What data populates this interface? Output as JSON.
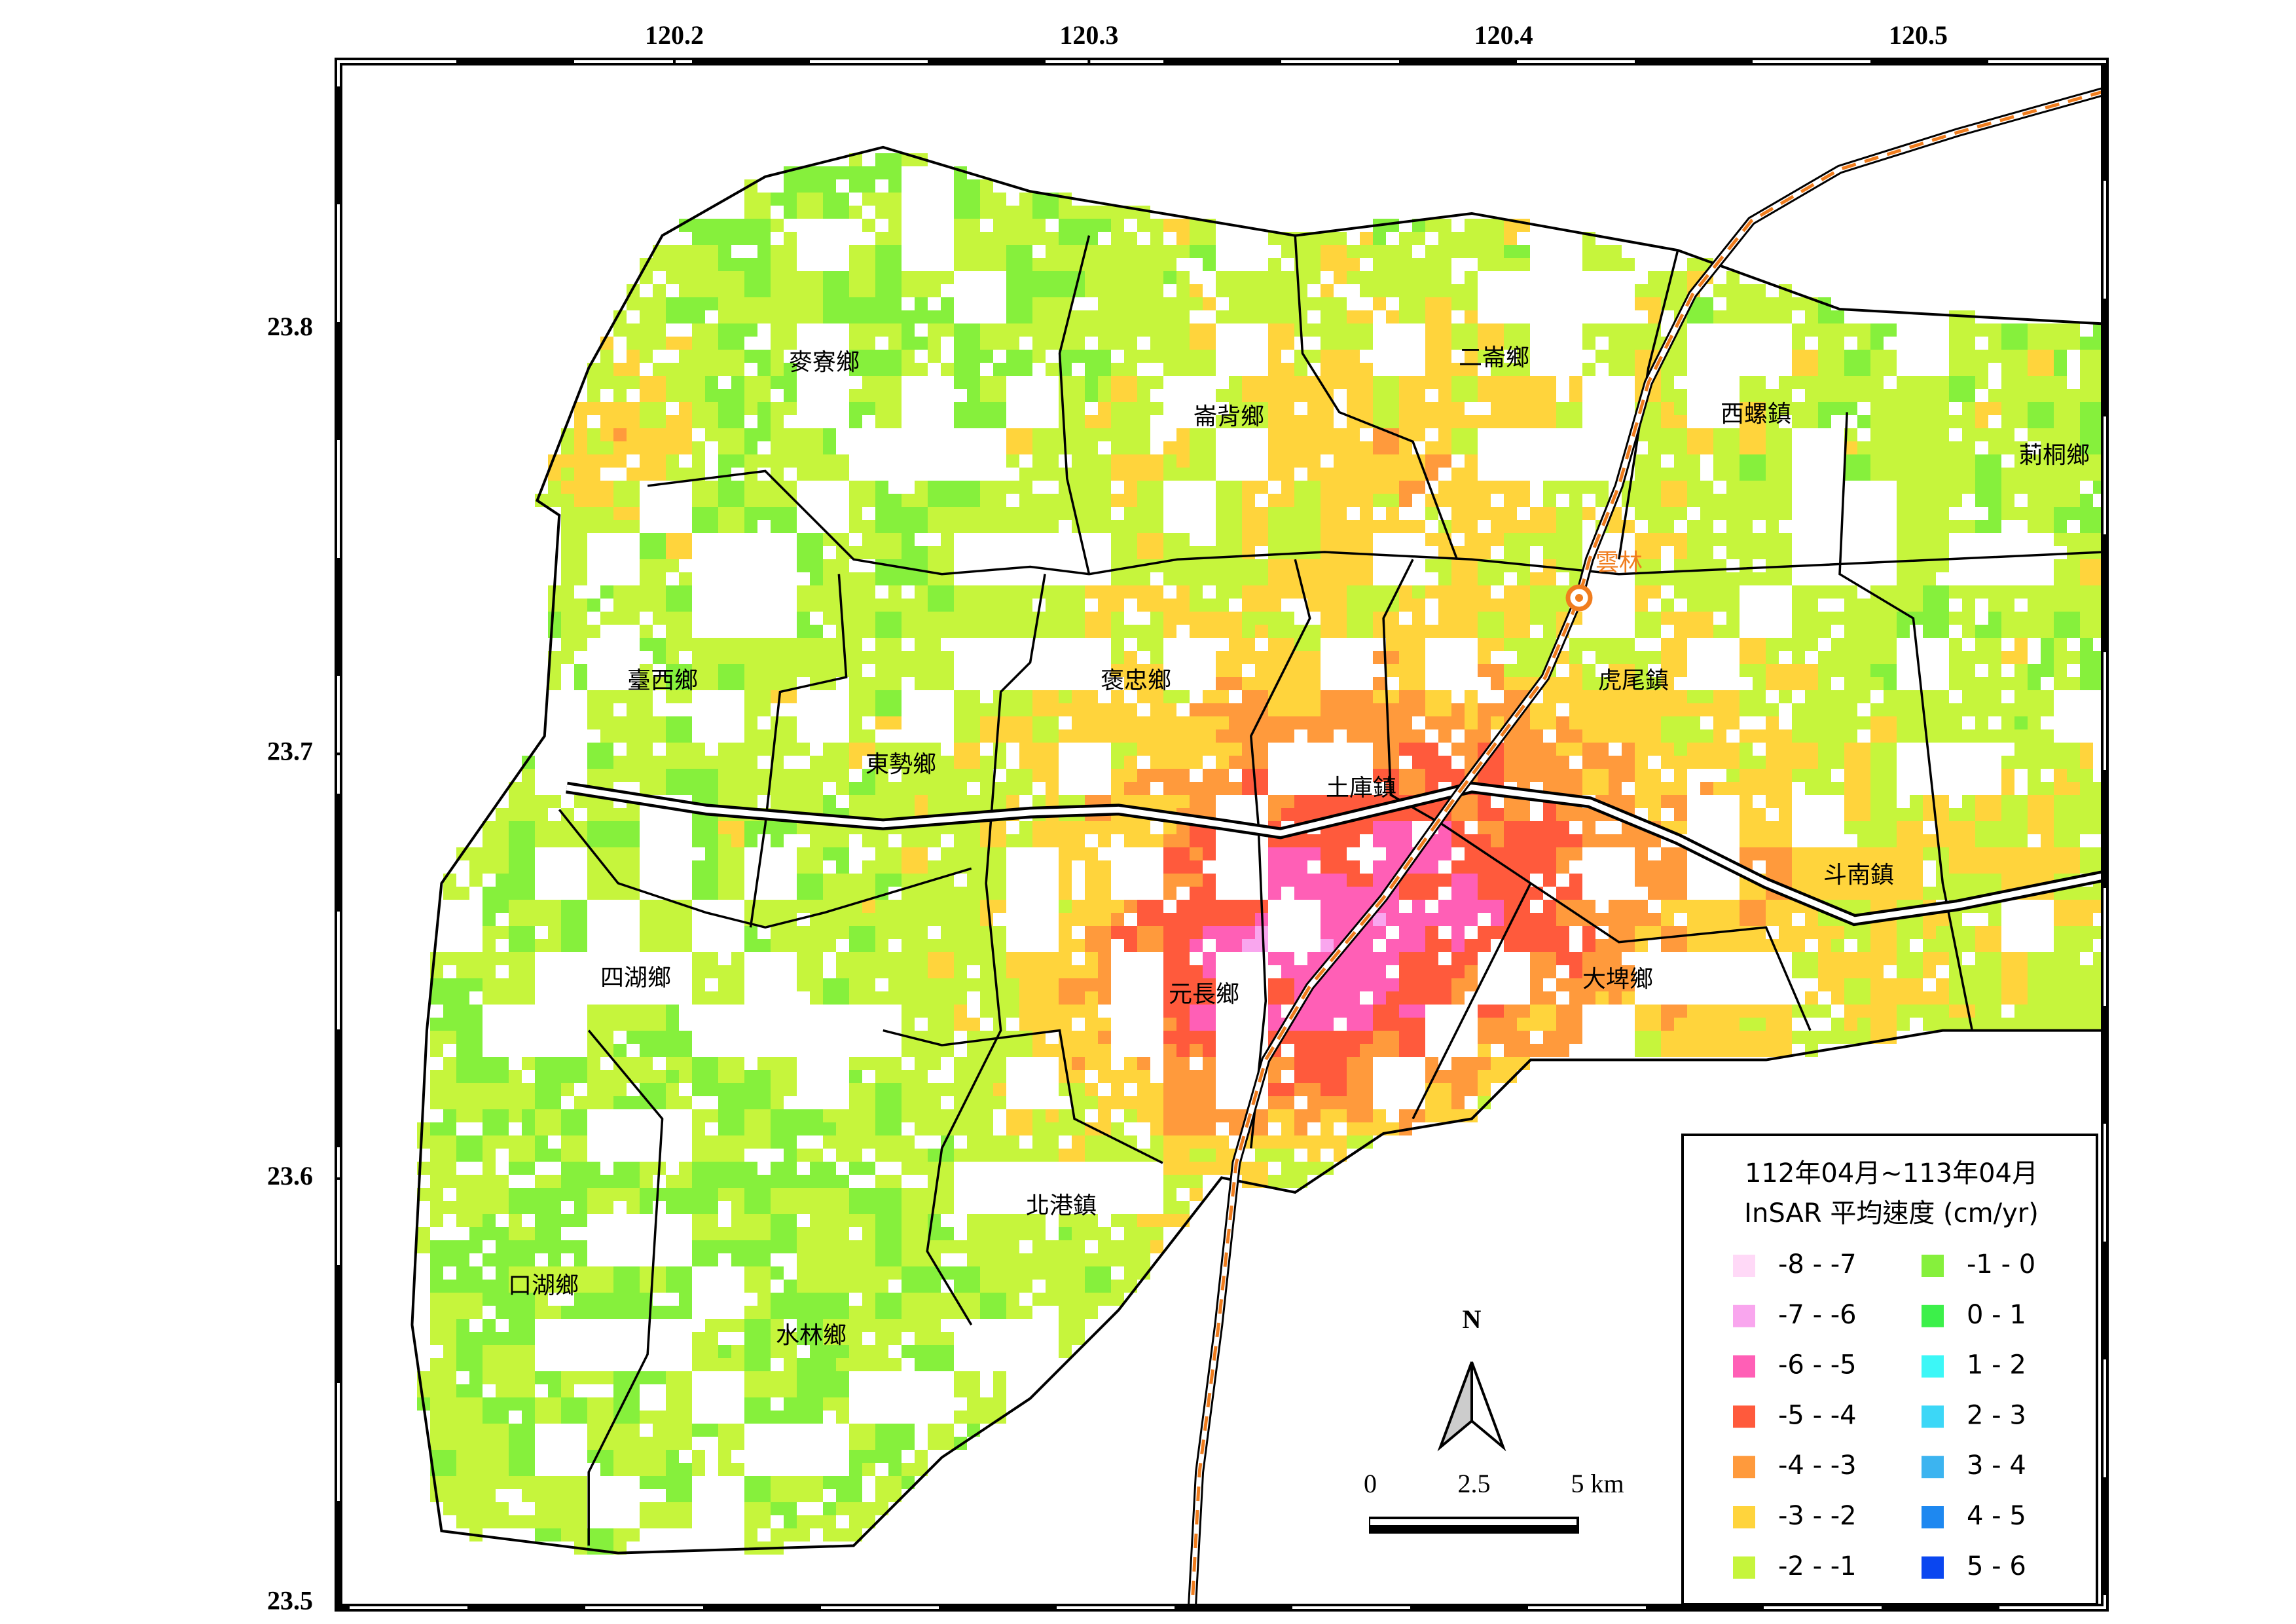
{
  "map": {
    "lon_ticks": [
      120.2,
      120.3,
      120.4,
      120.5
    ],
    "lat_ticks": [
      23.8,
      23.7,
      23.6,
      23.5
    ],
    "xlim": [
      120.119,
      120.545
    ],
    "ylim": [
      23.499,
      23.863
    ],
    "townships": [
      "麥寮鄉",
      "崙背鄉",
      "二崙鄉",
      "西螺鎮",
      "莿桐鄉",
      "臺西鄉",
      "褒忠鄉",
      "虎尾鎮",
      "東勢鄉",
      "土庫鎮",
      "斗南鎮",
      "四湖鄉",
      "元長鄉",
      "大埤鄉",
      "北港鎮",
      "口湖鄉",
      "水林鄉"
    ],
    "station": "雲林",
    "legend": {
      "title": [
        "112年04月~113年04月",
        "InSAR 平均速度 (cm/yr)"
      ],
      "items": [
        {
          "label": "-8 - -7",
          "color": "#ffd9f7"
        },
        {
          "label": "-7 - -6",
          "color": "#f9a6ee"
        },
        {
          "label": "-6 - -5",
          "color": "#ff5fb6"
        },
        {
          "label": "-5 - -4",
          "color": "#ff5a3c"
        },
        {
          "label": "-4 - -3",
          "color": "#ff9a3c"
        },
        {
          "label": "-3 - -2",
          "color": "#ffd43c"
        },
        {
          "label": "-2 - -1",
          "color": "#c6f53c"
        },
        {
          "label": "-1 - 0",
          "color": "#86f03c"
        },
        {
          "label": "0 - 1",
          "color": "#3cf04a"
        },
        {
          "label": "1 - 2",
          "color": "#3cf7f7"
        },
        {
          "label": "2 - 3",
          "color": "#3cd7f7"
        },
        {
          "label": "3 - 4",
          "color": "#3cb4f0"
        },
        {
          "label": "4 - 5",
          "color": "#1e88f0"
        },
        {
          "label": "5 - 6",
          "color": "#0a46f0"
        }
      ]
    },
    "north": "N",
    "scale_bar": {
      "ticks": [
        0,
        2.5,
        {
          "value": 5,
          "label": "5 km"
        }
      ]
    }
  }
}
